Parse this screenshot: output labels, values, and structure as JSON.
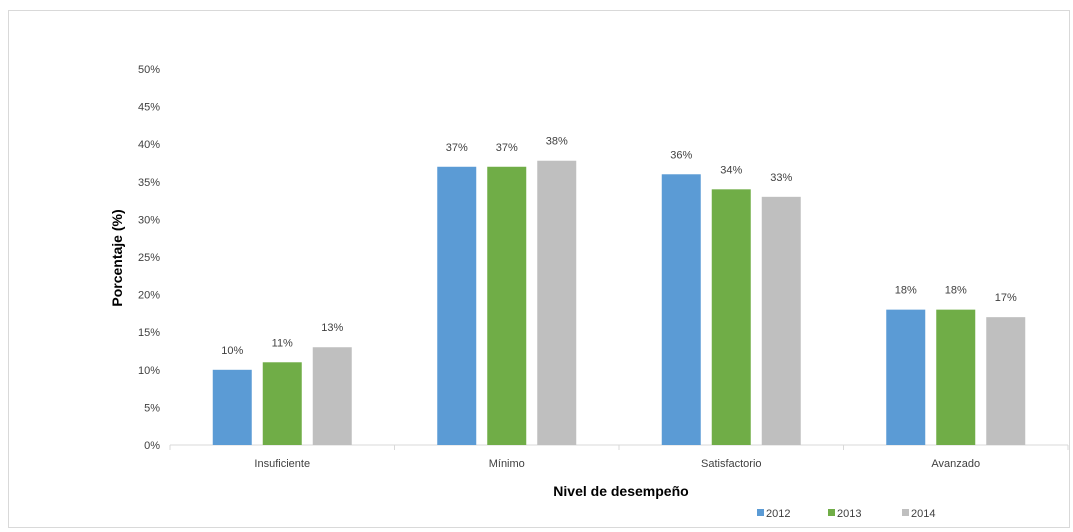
{
  "chart_data": {
    "type": "bar",
    "title": "",
    "xlabel": "Nivel de desempeño",
    "ylabel": "Porcentaje (%)",
    "categories": [
      "Insuficiente",
      "Mínimo",
      "Satisfactorio",
      "Avanzado"
    ],
    "series": [
      {
        "name": "2012",
        "color": "#5b9bd5",
        "values": [
          10,
          37,
          36,
          18
        ],
        "labels": [
          "10%",
          "37%",
          "36%",
          "18%"
        ]
      },
      {
        "name": "2013",
        "color": "#70ad47",
        "values": [
          11,
          37,
          34,
          18
        ],
        "labels": [
          "11%",
          "37%",
          "34%",
          "18%"
        ]
      },
      {
        "name": "2014",
        "color": "#bfbfbf",
        "values": [
          13,
          37.8,
          33,
          17
        ],
        "labels": [
          "13%",
          "38%",
          "33%",
          "17%"
        ]
      }
    ],
    "ylim": [
      0,
      50
    ],
    "yticks": [
      "0%",
      "5%",
      "10%",
      "15%",
      "20%",
      "25%",
      "30%",
      "35%",
      "40%",
      "45%",
      "50%"
    ],
    "grid": false,
    "legend_position": "bottom-right"
  }
}
